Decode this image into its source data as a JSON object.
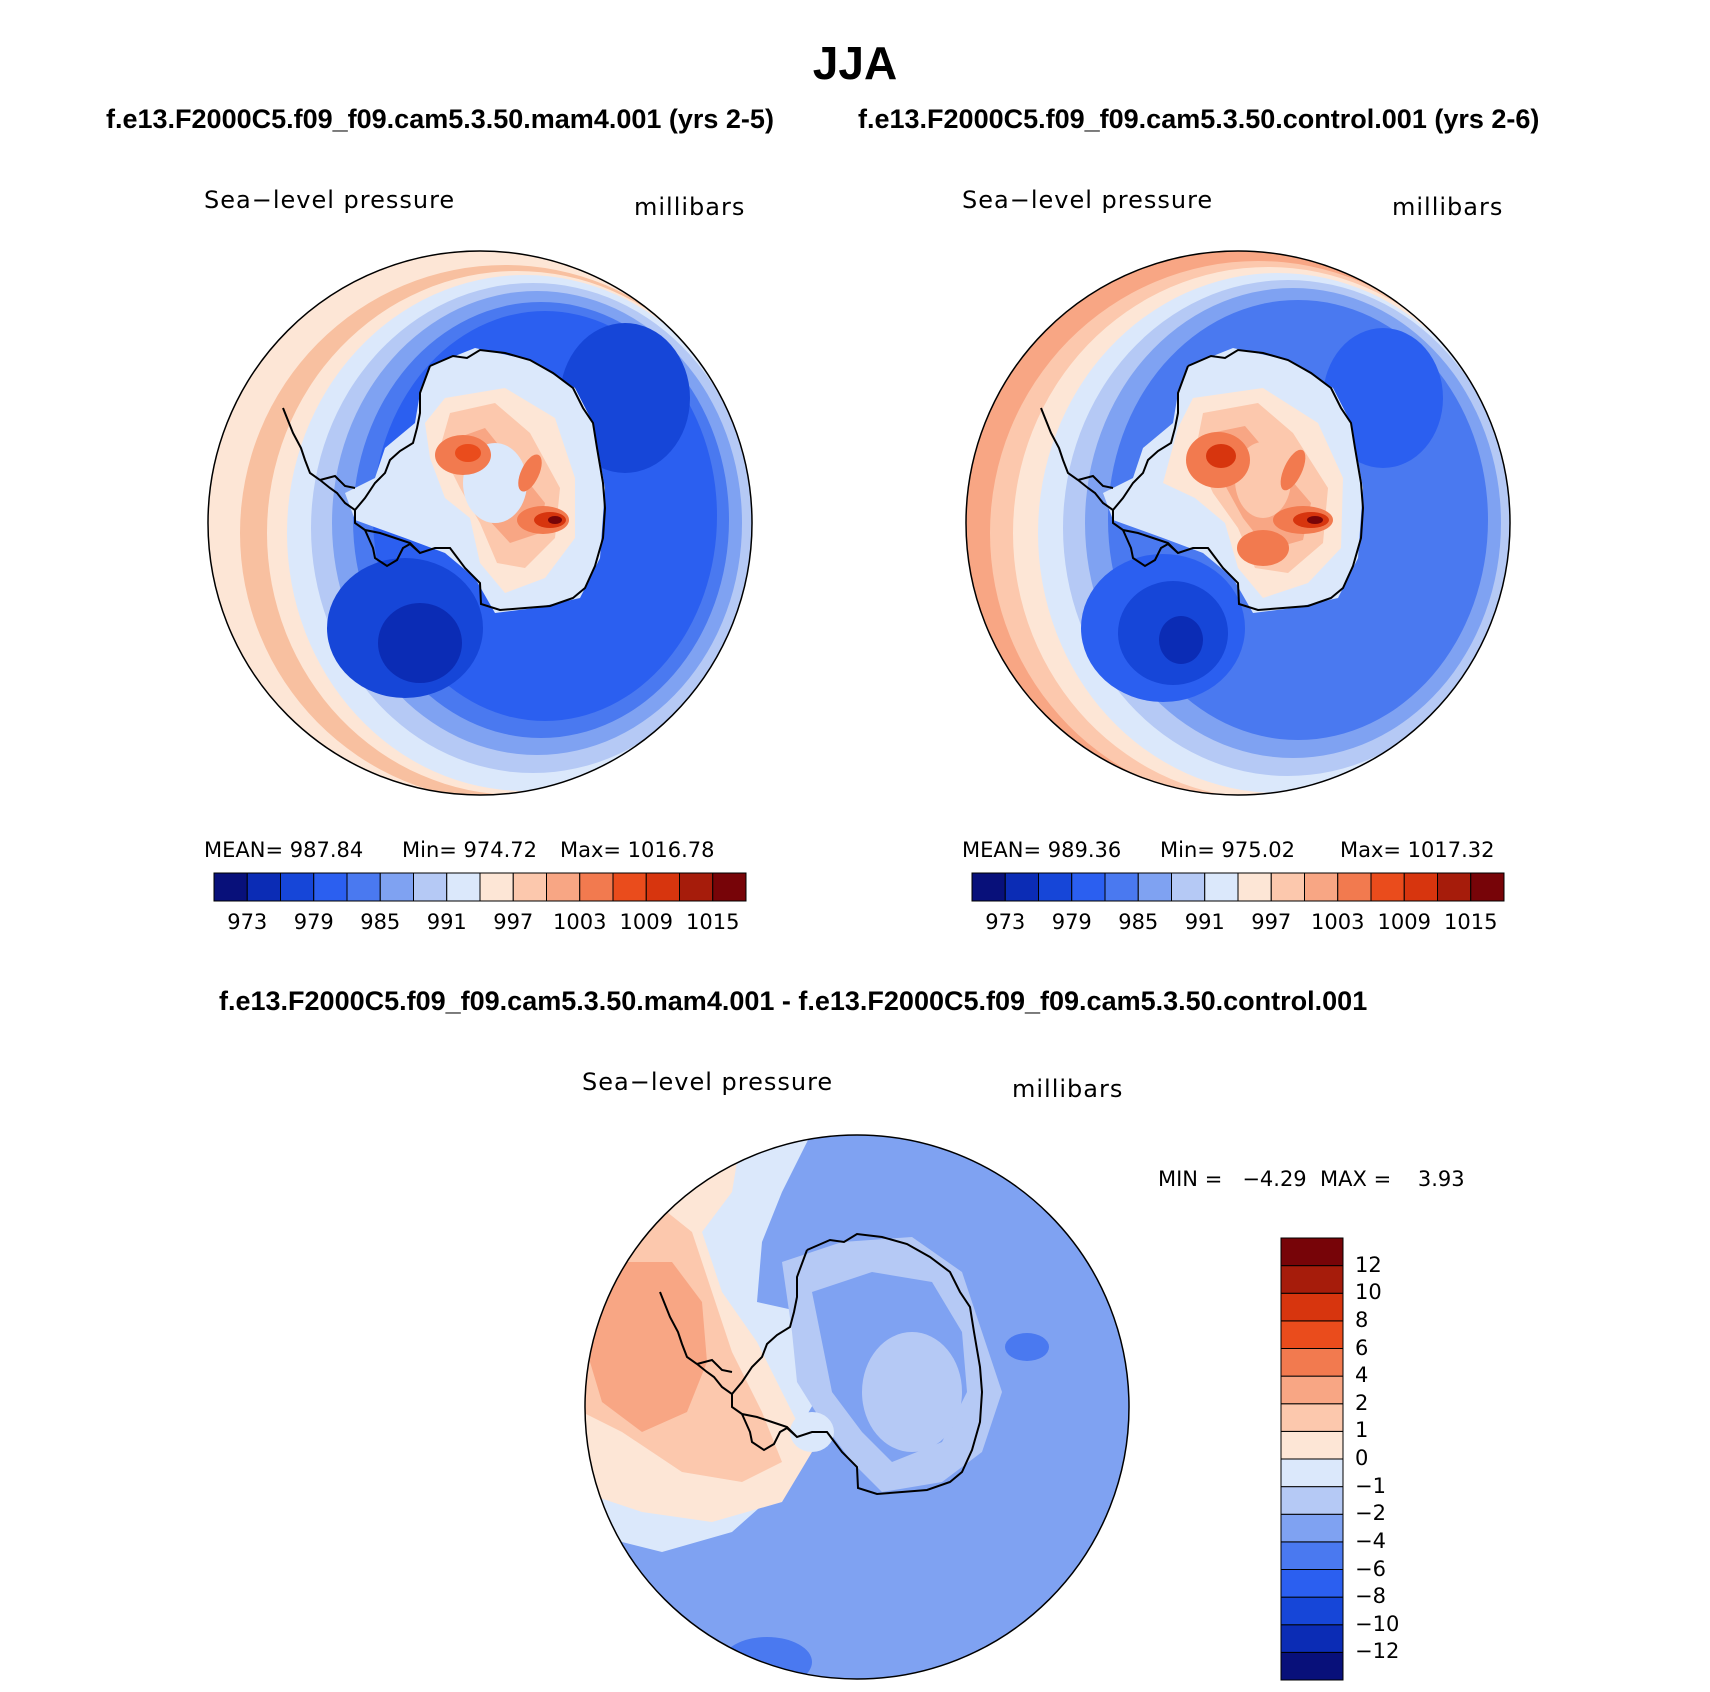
{
  "page_title": "JJA",
  "top_left": {
    "case_label": "f.e13.F2000C5.f09_f09.cam5.3.50.mam4.001 (yrs 2-5)",
    "variable": "Sea−level pressure",
    "units": "millibars",
    "stats": {
      "mean": "MEAN= 987.84",
      "min": "Min= 974.72",
      "max": "Max= 1016.78"
    }
  },
  "top_right": {
    "case_label": "f.e13.F2000C5.f09_f09.cam5.3.50.control.001 (yrs 2-6)",
    "variable": "Sea−level pressure",
    "units": "millibars",
    "stats": {
      "mean": "MEAN= 989.36",
      "min": "Min= 975.02",
      "max": "Max= 1017.32"
    }
  },
  "difference": {
    "case_label": "f.e13.F2000C5.f09_f09.cam5.3.50.mam4.001 - f.e13.F2000C5.f09_f09.cam5.3.50.control.001",
    "variable": "Sea−level pressure",
    "units": "millibars",
    "minmax": "MIN =   −4.29  MAX =    3.93"
  },
  "colorbar_abs": {
    "colors": [
      "#08107a",
      "#0b2cb5",
      "#1646d8",
      "#2b5ff0",
      "#4a79f0",
      "#7fa2f2",
      "#b5c9f5",
      "#dbe8fb",
      "#fde6d6",
      "#fcc8ad",
      "#f8a684",
      "#f27a4f",
      "#ea4c1c",
      "#d7350e",
      "#a61c0b",
      "#770408"
    ],
    "tick_labels": [
      "973",
      "979",
      "985",
      "991",
      "997",
      "1003",
      "1009",
      "1015"
    ]
  },
  "colorbar_diff": {
    "colors": [
      "#08107a",
      "#0b2cb5",
      "#1646d8",
      "#2b5ff0",
      "#4a79f0",
      "#7fa2f2",
      "#b5c9f5",
      "#dbe8fb",
      "#fde6d6",
      "#fcc8ad",
      "#f8a684",
      "#f27a4f",
      "#ea4c1c",
      "#d7350e",
      "#a61c0b",
      "#770408"
    ],
    "tick_labels": [
      "−12",
      "−10",
      "−8",
      "−6",
      "−4",
      "−2",
      "−1",
      "0",
      "1",
      "2",
      "4",
      "6",
      "8",
      "10",
      "12"
    ]
  }
}
